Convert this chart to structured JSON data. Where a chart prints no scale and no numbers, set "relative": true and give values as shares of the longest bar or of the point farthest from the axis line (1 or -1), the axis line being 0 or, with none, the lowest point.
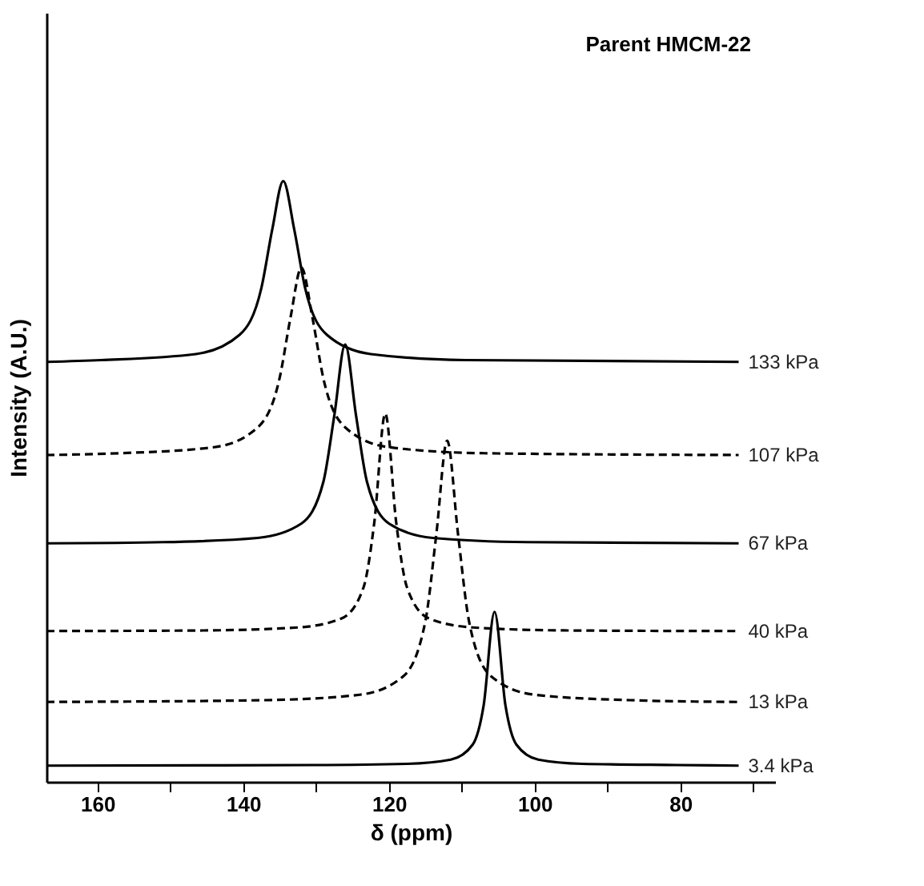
{
  "chart_data": {
    "type": "line",
    "relative": true,
    "xlabel": "δ (ppm)",
    "ylabel": "Intensity (A.U.)",
    "annotations": [
      "Parent HMCM-22"
    ],
    "xlim": [
      167,
      67
    ],
    "xticks": [
      160,
      {
        "value": 150,
        "label": null
      },
      140,
      {
        "value": 130,
        "label": null
      },
      120,
      {
        "value": 110,
        "label": null
      },
      100,
      {
        "value": 90,
        "label": null
      },
      80,
      {
        "value": 70,
        "label": null
      }
    ],
    "grid": false,
    "marker": "none",
    "series": [
      {
        "name": "133 kPa",
        "color": "#000000",
        "line_style": "solid",
        "x": [
          167,
          159.5,
          146.5,
          140.5,
          137.5,
          136,
          134.5,
          133,
          131.5,
          128.5,
          122.5,
          109.5,
          72
        ],
        "values": [
          0.699,
          0.702,
          0.712,
          0.744,
          0.822,
          0.92,
          1.0,
          0.92,
          0.822,
          0.744,
          0.712,
          0.702,
          0.699
        ]
      },
      {
        "name": "107 kPa",
        "color": "#000000",
        "line_style": "dashed",
        "x": [
          167,
          157,
          144,
          138,
          135,
          133.5,
          132,
          130.5,
          129,
          126,
          120,
          107,
          72
        ],
        "values": [
          0.544,
          0.547,
          0.557,
          0.59,
          0.672,
          0.773,
          0.856,
          0.773,
          0.672,
          0.59,
          0.557,
          0.547,
          0.544
        ]
      },
      {
        "name": "67 kPa",
        "color": "#000000",
        "line_style": "solid",
        "x": [
          167,
          151,
          138,
          132,
          129,
          127.5,
          126,
          124.5,
          123,
          120,
          114,
          101,
          72
        ],
        "values": [
          0.397,
          0.399,
          0.406,
          0.43,
          0.499,
          0.609,
          0.728,
          0.609,
          0.499,
          0.43,
          0.406,
          0.399,
          0.397
        ]
      },
      {
        "name": "40 kPa",
        "color": "#000000",
        "line_style": "dashed",
        "x": [
          167,
          145.5,
          132.5,
          126.5,
          123.5,
          122,
          120.5,
          119,
          117.5,
          114.5,
          108.5,
          95.5,
          72
        ],
        "values": [
          0.251,
          0.252,
          0.257,
          0.272,
          0.323,
          0.432,
          0.613,
          0.432,
          0.323,
          0.272,
          0.257,
          0.252,
          0.251
        ]
      },
      {
        "name": "13 kPa",
        "color": "#000000",
        "line_style": "dashed",
        "x": [
          167,
          137,
          124,
          118,
          115,
          113.5,
          112,
          110.5,
          109,
          106,
          100,
          87,
          72
        ],
        "values": [
          0.133,
          0.136,
          0.145,
          0.176,
          0.267,
          0.411,
          0.568,
          0.411,
          0.267,
          0.176,
          0.145,
          0.136,
          0.133
        ]
      },
      {
        "name": "3.4 kPa",
        "color": "#000000",
        "line_style": "solid",
        "x": [
          167,
          130.5,
          117.5,
          111.5,
          108.5,
          107,
          105.5,
          104,
          102.5,
          99.5,
          93.5,
          80.5,
          72
        ],
        "values": [
          0.027,
          0.028,
          0.03,
          0.037,
          0.062,
          0.127,
          0.283,
          0.127,
          0.062,
          0.037,
          0.03,
          0.028,
          0.027
        ]
      }
    ]
  }
}
